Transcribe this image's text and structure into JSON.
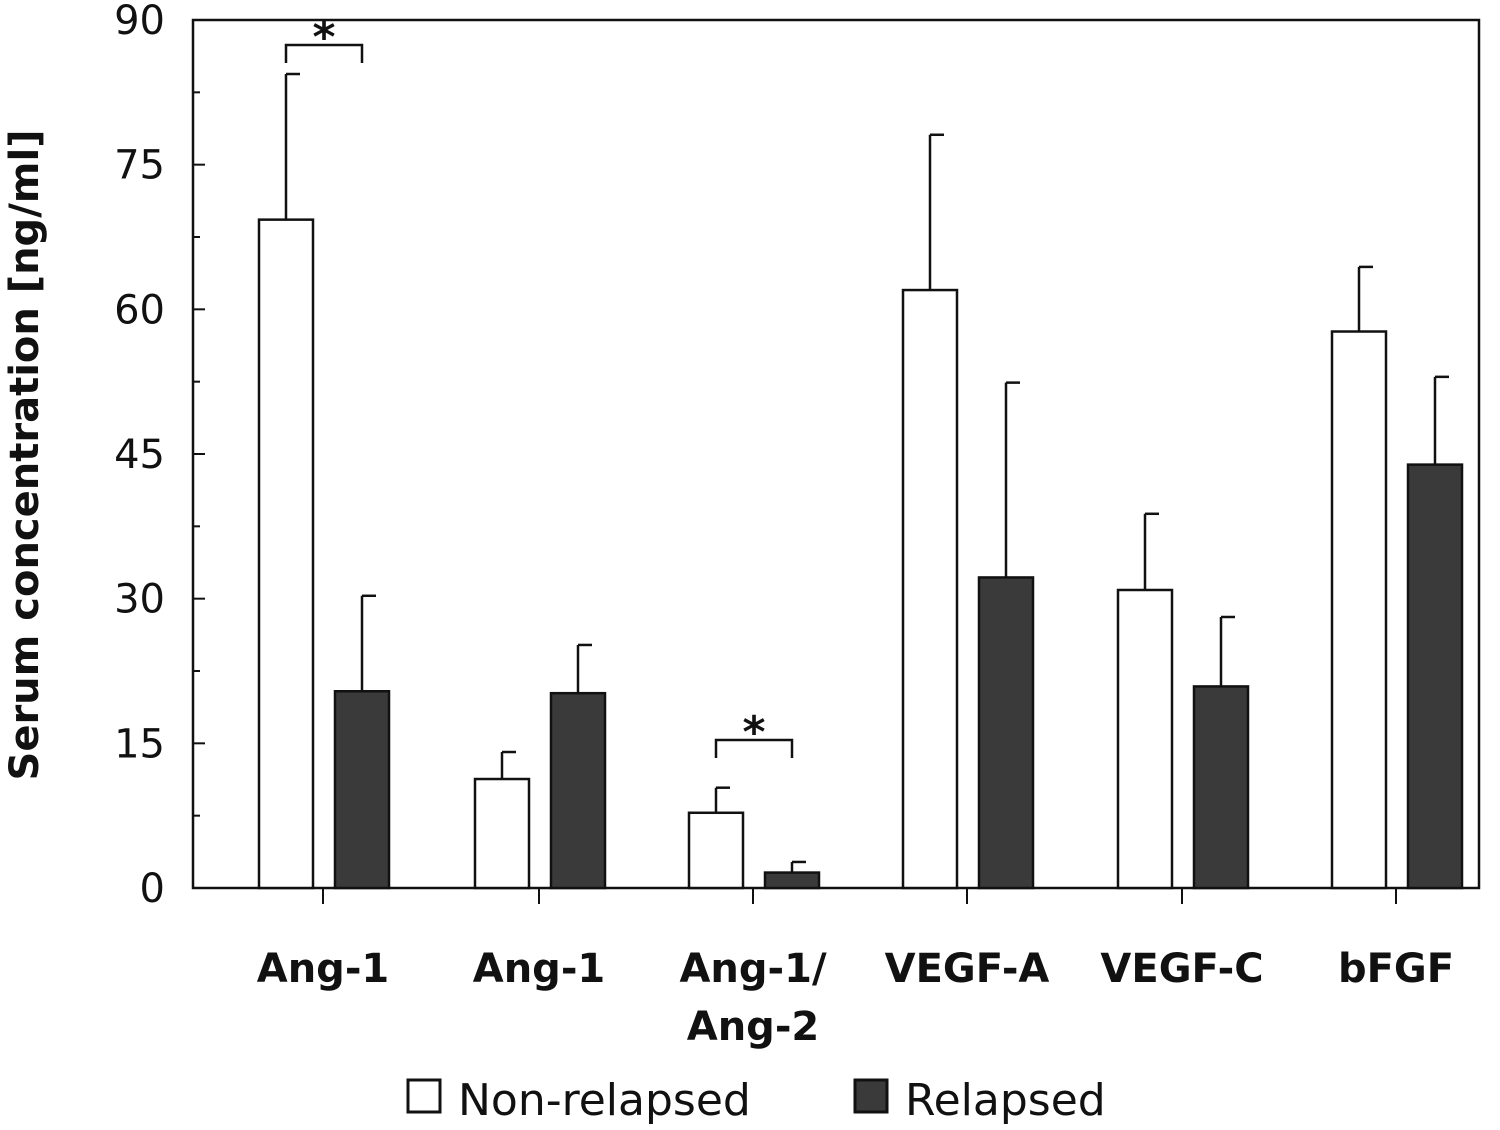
{
  "chart_data": {
    "type": "bar",
    "title": "",
    "xlabel": "",
    "ylabel": "Serum concentration [ng/ml]",
    "ylim": [
      0,
      90
    ],
    "yticks": [
      0,
      15,
      30,
      45,
      60,
      75,
      90
    ],
    "grid": false,
    "legend_placement": "bottom",
    "categories": [
      [
        "Ang-1"
      ],
      [
        "Ang-1"
      ],
      [
        "Ang-1/",
        "Ang-2"
      ],
      [
        "VEGF-A"
      ],
      [
        "VEGF-C"
      ],
      [
        "bFGF"
      ]
    ],
    "series": [
      {
        "name": "Non-relapsed",
        "color": "#ffffff",
        "values": [
          69.3,
          11.3,
          7.8,
          62.0,
          30.9,
          57.7
        ],
        "error_upper": [
          84.4,
          14.1,
          10.4,
          78.1,
          38.8,
          64.4
        ]
      },
      {
        "name": "Relapsed",
        "color": "#3a3a3a",
        "values": [
          20.4,
          20.2,
          1.6,
          32.2,
          20.9,
          43.9
        ],
        "error_upper": [
          30.3,
          25.2,
          2.7,
          52.4,
          28.1,
          53.0
        ]
      }
    ],
    "annotations": [
      {
        "category_index": 0,
        "text": "*",
        "type": "significance-bracket"
      },
      {
        "category_index": 2,
        "text": "*",
        "type": "significance-bracket"
      }
    ]
  }
}
